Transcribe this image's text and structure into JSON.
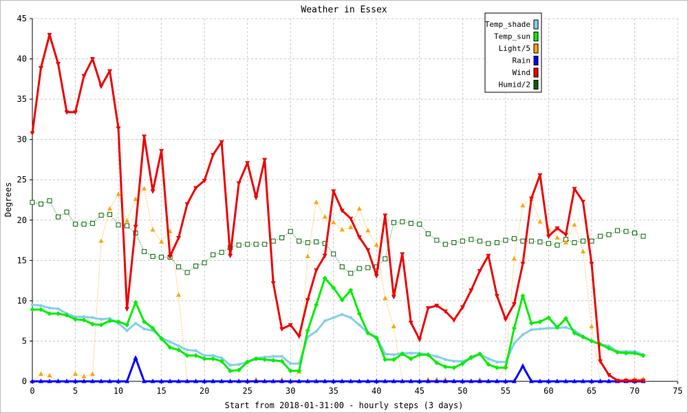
{
  "chart_data": {
    "type": "line",
    "title": "Weather in Essex",
    "xlabel": "Start from 2018-01-31:00 - hourly steps (3 days)",
    "ylabel": "Degrees",
    "xlim": [
      0,
      75
    ],
    "ylim": [
      0,
      45
    ],
    "xticks": [
      0,
      5,
      10,
      15,
      20,
      25,
      30,
      35,
      40,
      45,
      50,
      55,
      60,
      65,
      70,
      75
    ],
    "yticks": [
      0,
      5,
      10,
      15,
      20,
      25,
      30,
      35,
      40,
      45
    ],
    "grid": true,
    "legend_position": "top-right",
    "series": [
      {
        "name": "Temp_shade",
        "color": "#87ceeb",
        "marker": "circle",
        "dotted": false,
        "width": 3,
        "values": [
          9.5,
          9.4,
          9.1,
          9.0,
          8.4,
          8.0,
          8.0,
          7.9,
          7.7,
          7.8,
          7.2,
          6.3,
          7.2,
          6.5,
          6.3,
          5.4,
          4.9,
          4.4,
          3.9,
          3.8,
          3.2,
          3.2,
          2.9,
          2.0,
          2.1,
          2.4,
          2.9,
          3.0,
          3.1,
          3.1,
          2.2,
          2.2,
          5.5,
          6.2,
          7.5,
          7.9,
          8.3,
          7.9,
          7.0,
          6.0,
          5.5,
          3.4,
          3.3,
          3.5,
          3.5,
          3.5,
          3.3,
          3.1,
          2.7,
          2.5,
          2.5,
          2.8,
          3.4,
          2.8,
          2.4,
          2.4,
          4.7,
          5.8,
          6.4,
          6.5,
          6.6,
          6.6,
          6.7,
          6.3,
          5.6,
          5.0,
          4.6,
          4.4,
          3.7,
          3.7,
          3.7,
          3.3
        ]
      },
      {
        "name": "Temp_sun",
        "color": "#00ee00",
        "marker": "diamond",
        "dotted": false,
        "width": 3,
        "values": [
          8.9,
          8.9,
          8.4,
          8.4,
          8.2,
          7.7,
          7.6,
          7.1,
          7.0,
          7.5,
          7.4,
          7.0,
          9.8,
          7.4,
          6.6,
          5.3,
          4.2,
          3.9,
          3.2,
          3.2,
          2.8,
          2.8,
          2.5,
          1.3,
          1.4,
          2.4,
          2.8,
          2.7,
          2.6,
          2.5,
          1.3,
          1.3,
          6.3,
          9.5,
          12.8,
          11.6,
          10.1,
          11.3,
          8.4,
          6.0,
          5.4,
          2.7,
          2.7,
          3.4,
          2.8,
          3.3,
          3.3,
          2.3,
          1.8,
          1.7,
          2.2,
          3.0,
          3.4,
          2.1,
          1.7,
          1.7,
          6.6,
          10.6,
          7.2,
          7.4,
          7.9,
          6.7,
          7.8,
          6.0,
          5.5,
          5.0,
          4.6,
          4.1,
          3.6,
          3.5,
          3.5,
          3.2
        ]
      },
      {
        "name": "Light/5",
        "color": "#ffa500",
        "marker": "triangle-up",
        "dotted": true,
        "width": 1,
        "values": [
          0,
          0.9,
          0.7,
          0,
          0,
          0.9,
          0.6,
          0.9,
          17.4,
          21.4,
          23.2,
          19.9,
          22.6,
          23.9,
          18.8,
          17.3,
          18.6,
          10.7,
          0,
          0,
          0,
          0,
          0,
          0,
          0,
          0,
          0.2,
          0,
          0,
          0.2,
          0,
          1.2,
          15.5,
          22.2,
          20.4,
          19.7,
          18.8,
          19.1,
          21.4,
          18.7,
          16.9,
          10.3,
          6.8,
          0,
          0,
          0,
          0.2,
          0.2,
          0.2,
          0,
          0,
          0,
          0.2,
          0,
          0,
          1.9,
          15.2,
          21.8,
          22.6,
          19.8,
          18.8,
          17.8,
          17.2,
          19.4,
          16.1,
          6.8,
          0,
          0,
          0,
          0.2,
          0.3,
          0.3
        ]
      },
      {
        "name": "Rain",
        "color": "#0000ff",
        "marker": "triangle-up",
        "dotted": false,
        "width": 3,
        "values": [
          0,
          0,
          0,
          0,
          0,
          0,
          0,
          0,
          0,
          0,
          0,
          0,
          2.9,
          0,
          0,
          0,
          0,
          0,
          0,
          0,
          0,
          0,
          0,
          0,
          0,
          0,
          0,
          0,
          0,
          0,
          0,
          0,
          0,
          0,
          0,
          0,
          0,
          0,
          0,
          0,
          0,
          0,
          0,
          0,
          0,
          0,
          0,
          0,
          0,
          0,
          0,
          0,
          0,
          0,
          0,
          0,
          0,
          1.9,
          0,
          0,
          0,
          0,
          0,
          0,
          0,
          0,
          0,
          0,
          0,
          0,
          0,
          0
        ]
      },
      {
        "name": "Wind",
        "color": "#ee0000",
        "marker": "triangle-down",
        "dotted": false,
        "width": 3,
        "values": [
          30.8,
          38.9,
          43.0,
          39.4,
          33.4,
          33.4,
          37.9,
          40.0,
          36.6,
          38.5,
          31.4,
          9.0,
          19.2,
          30.4,
          23.6,
          28.6,
          15.5,
          17.8,
          22.0,
          24.0,
          24.9,
          28.1,
          29.7,
          15.6,
          24.6,
          27.1,
          22.8,
          27.5,
          12.2,
          6.5,
          7.0,
          5.6,
          10.1,
          13.8,
          15.6,
          23.6,
          21.2,
          20.2,
          17.9,
          16.3,
          13.1,
          20.6,
          10.5,
          15.8,
          7.3,
          5.2,
          9.1,
          9.4,
          8.7,
          7.6,
          9.2,
          11.3,
          13.7,
          15.6,
          10.6,
          7.7,
          9.6,
          14.6,
          22.7,
          25.6,
          18.0,
          19.0,
          18.2,
          23.9,
          22.3,
          14.6,
          2.5,
          0.8,
          0.1,
          0.1,
          0.1,
          0.1
        ]
      },
      {
        "name": "Humid/2",
        "color": "#006400",
        "marker": "square-open",
        "dotted": true,
        "width": 1,
        "values": [
          22.2,
          22.0,
          22.4,
          20.4,
          21.0,
          19.5,
          19.5,
          19.6,
          20.6,
          20.7,
          19.4,
          19.3,
          18.4,
          16.1,
          15.5,
          15.4,
          15.4,
          14.2,
          13.5,
          14.3,
          14.7,
          15.7,
          16.0,
          16.6,
          16.9,
          17.0,
          17.0,
          17.0,
          17.4,
          17.8,
          18.6,
          17.4,
          17.2,
          17.3,
          17.1,
          15.8,
          14.2,
          13.4,
          14.0,
          14.1,
          14.2,
          15.2,
          19.7,
          19.8,
          19.6,
          19.5,
          18.3,
          17.5,
          17.0,
          17.2,
          17.4,
          17.6,
          17.4,
          17.1,
          17.2,
          17.5,
          17.7,
          17.4,
          17.4,
          17.3,
          17.1,
          16.9,
          17.6,
          17.2,
          17.4,
          17.4,
          18.0,
          18.2,
          18.7,
          18.6,
          18.4,
          18.0
        ]
      }
    ]
  }
}
